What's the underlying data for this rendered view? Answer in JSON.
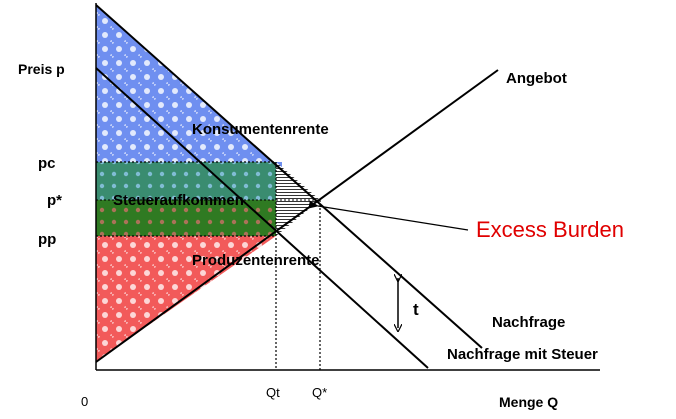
{
  "labels": {
    "y_axis": "Preis p",
    "x_axis": "Menge Q",
    "origin": "0",
    "pc": "pc",
    "pstar": "p*",
    "pp": "pp",
    "qt": "Qt",
    "qstar": "Q*",
    "consumer_surplus": "Konsumentenrente",
    "tax_revenue": "Steueraufkommen",
    "producer_surplus": "Produzentenrente",
    "excess_burden": "Excess Burden",
    "supply": "Angebot",
    "demand": "Nachfrage",
    "demand_with_tax": "Nachfrage mit Steuer",
    "tax": "t"
  },
  "colors": {
    "consumer_surplus": "#6f8ff0",
    "tax_revenue_top": "#3a8c70",
    "tax_revenue_bottom": "#2f7a22",
    "producer_surplus": "#f25a5a",
    "excess_burden_text": "#e00000",
    "lines": "#000000"
  }
}
